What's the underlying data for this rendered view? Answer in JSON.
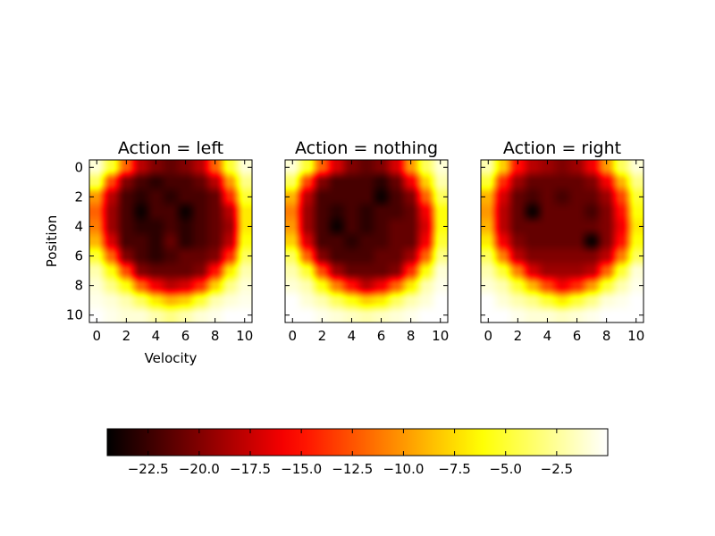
{
  "chart_data": {
    "type": "heatmap",
    "colormap": "hot",
    "interpolation": "bicubic",
    "colorbar": {
      "min": -24.5,
      "max": 0,
      "orientation": "horizontal",
      "ticks": [
        -22.5,
        -20.0,
        -17.5,
        -15.0,
        -12.5,
        -10.0,
        -7.5,
        -5.0,
        -2.5
      ],
      "tick_labels": [
        "−22.5",
        "−20.0",
        "−17.5",
        "−15.0",
        "−12.5",
        "−10.0",
        "−7.5",
        "−5.0",
        "−2.5"
      ]
    },
    "panels": [
      {
        "title": "Action = left",
        "xlabel": "Velocity",
        "ylabel": "Position",
        "x_ticks": [
          0,
          2,
          4,
          6,
          8,
          10
        ],
        "y_ticks": [
          0,
          2,
          4,
          6,
          8,
          10
        ],
        "show_x_tick_labels": true,
        "show_y_tick_labels": true,
        "values": [
          [
            -1,
            -5,
            -12,
            -18,
            -20,
            -21,
            -20,
            -18,
            -12,
            -5,
            -1
          ],
          [
            -4,
            -13,
            -20,
            -22,
            -23,
            -22,
            -22,
            -21,
            -18,
            -10,
            -3
          ],
          [
            -10,
            -18,
            -22,
            -23,
            -22,
            -23,
            -22,
            -22,
            -21,
            -14,
            -5
          ],
          [
            -12,
            -19,
            -22,
            -24,
            -22,
            -22,
            -24,
            -22,
            -21,
            -18,
            -7
          ],
          [
            -11,
            -19,
            -22,
            -23,
            -23,
            -22,
            -23,
            -22,
            -21,
            -19,
            -7
          ],
          [
            -9,
            -17,
            -22,
            -22,
            -23,
            -21,
            -23,
            -22,
            -21,
            -18,
            -6
          ],
          [
            -5,
            -12,
            -20,
            -22,
            -23,
            -22,
            -21,
            -21,
            -20,
            -14,
            -4
          ],
          [
            -2,
            -6,
            -13,
            -20,
            -21,
            -21,
            -21,
            -20,
            -15,
            -7,
            -2
          ],
          [
            -1,
            -3,
            -6,
            -12,
            -16,
            -18,
            -17,
            -14,
            -8,
            -3,
            -1
          ],
          [
            -0.5,
            -1,
            -2,
            -4,
            -7,
            -9,
            -8,
            -5,
            -2,
            -1,
            -0.5
          ],
          [
            0,
            -0.5,
            -1,
            -1,
            -2,
            -3,
            -2,
            -1,
            -0.5,
            0,
            0
          ]
        ]
      },
      {
        "title": "Action = nothing",
        "xlabel": "",
        "ylabel": "",
        "x_ticks": [
          0,
          2,
          4,
          6,
          8,
          10
        ],
        "y_ticks": [
          0,
          2,
          4,
          6,
          8,
          10
        ],
        "show_x_tick_labels": true,
        "show_y_tick_labels": false,
        "values": [
          [
            -1,
            -5,
            -12,
            -17,
            -20,
            -21,
            -20,
            -17,
            -10,
            -4,
            -1
          ],
          [
            -4,
            -13,
            -20,
            -22,
            -22,
            -22,
            -23,
            -21,
            -16,
            -8,
            -2
          ],
          [
            -9,
            -18,
            -22,
            -22,
            -22,
            -22,
            -24,
            -22,
            -20,
            -12,
            -4
          ],
          [
            -11,
            -19,
            -22,
            -23,
            -22,
            -23,
            -22,
            -22,
            -21,
            -16,
            -6
          ],
          [
            -10,
            -19,
            -22,
            -24,
            -22,
            -23,
            -22,
            -21,
            -21,
            -17,
            -6
          ],
          [
            -8,
            -17,
            -22,
            -22,
            -23,
            -22,
            -22,
            -21,
            -21,
            -16,
            -5
          ],
          [
            -4,
            -12,
            -20,
            -22,
            -22,
            -22,
            -21,
            -21,
            -19,
            -12,
            -3
          ],
          [
            -2,
            -5,
            -13,
            -19,
            -21,
            -21,
            -21,
            -20,
            -14,
            -6,
            -1
          ],
          [
            -1,
            -2,
            -6,
            -11,
            -15,
            -18,
            -16,
            -12,
            -7,
            -2,
            -0.5
          ],
          [
            0,
            -1,
            -2,
            -4,
            -6,
            -8,
            -7,
            -4,
            -2,
            -1,
            0
          ],
          [
            0,
            0,
            -0.5,
            -1,
            -1.5,
            -2,
            -1.5,
            -1,
            -0.5,
            0,
            0
          ]
        ]
      },
      {
        "title": "Action = right",
        "xlabel": "",
        "ylabel": "",
        "x_ticks": [
          0,
          2,
          4,
          6,
          8,
          10
        ],
        "y_ticks": [
          0,
          2,
          4,
          6,
          8,
          10
        ],
        "show_x_tick_labels": true,
        "show_y_tick_labels": false,
        "values": [
          [
            -2,
            -8,
            -15,
            -18,
            -19,
            -20,
            -19,
            -16,
            -10,
            -4,
            -1
          ],
          [
            -5,
            -14,
            -19,
            -21,
            -21,
            -21,
            -21,
            -20,
            -16,
            -9,
            -3
          ],
          [
            -9,
            -17,
            -21,
            -22,
            -21,
            -22,
            -21,
            -21,
            -19,
            -13,
            -5
          ],
          [
            -10,
            -18,
            -21,
            -24,
            -21,
            -21,
            -21,
            -22,
            -20,
            -15,
            -6
          ],
          [
            -9,
            -18,
            -21,
            -21,
            -21,
            -21,
            -21,
            -21,
            -20,
            -16,
            -7
          ],
          [
            -7,
            -16,
            -20,
            -21,
            -21,
            -21,
            -21,
            -24,
            -20,
            -15,
            -6
          ],
          [
            -4,
            -11,
            -18,
            -20,
            -20,
            -20,
            -20,
            -20,
            -18,
            -11,
            -4
          ],
          [
            -2,
            -5,
            -11,
            -17,
            -19,
            -19,
            -19,
            -18,
            -12,
            -5,
            -1
          ],
          [
            -1,
            -2,
            -5,
            -9,
            -13,
            -16,
            -14,
            -10,
            -5,
            -2,
            -0.5
          ],
          [
            0,
            -1,
            -2,
            -3,
            -5,
            -7,
            -5,
            -3,
            -1,
            -0.5,
            0
          ],
          [
            0,
            0,
            -0.5,
            -1,
            -1,
            -1.5,
            -1,
            -0.5,
            0,
            0,
            0
          ]
        ]
      }
    ]
  }
}
